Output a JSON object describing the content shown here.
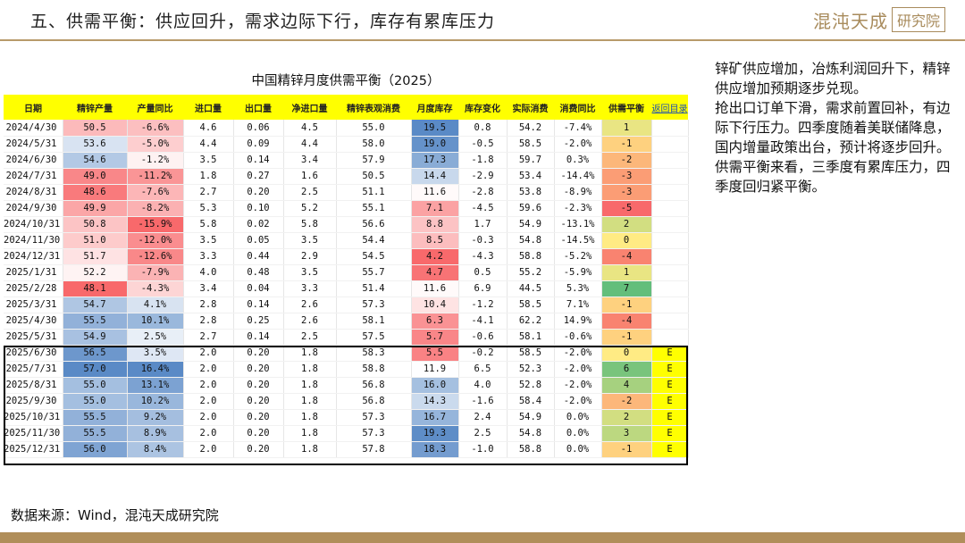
{
  "header": {
    "title": "五、供需平衡：供应回升，需求边际下行，库存有累库压力",
    "logo_main": "混沌天成",
    "logo_boxed": "研究院"
  },
  "table": {
    "title": "中国精锌月度供需平衡（2025）",
    "columns": [
      "日期",
      "精锌产量",
      "产量同比",
      "进口量",
      "出口量",
      "净进口量",
      "精锌表观消费",
      "月度库存",
      "库存变化",
      "实际消费",
      "消费同比",
      "供需平衡"
    ],
    "link_label": "返回目录",
    "rows": [
      [
        "2024/4/30",
        "50.5",
        "-6.6%",
        "4.6",
        "0.06",
        "4.5",
        "55.0",
        "19.5",
        "0.8",
        "54.2",
        "-7.4%",
        "1",
        ""
      ],
      [
        "2024/5/31",
        "53.6",
        "-5.0%",
        "4.4",
        "0.09",
        "4.4",
        "58.0",
        "19.0",
        "-0.5",
        "58.5",
        "-2.0%",
        "-1",
        ""
      ],
      [
        "2024/6/30",
        "54.6",
        "-1.2%",
        "3.5",
        "0.14",
        "3.4",
        "57.9",
        "17.3",
        "-1.8",
        "59.7",
        "0.3%",
        "-2",
        ""
      ],
      [
        "2024/7/31",
        "49.0",
        "-11.2%",
        "1.8",
        "0.27",
        "1.6",
        "50.5",
        "14.4",
        "-2.9",
        "53.4",
        "-14.4%",
        "-3",
        ""
      ],
      [
        "2024/8/31",
        "48.6",
        "-7.6%",
        "2.7",
        "0.20",
        "2.5",
        "51.1",
        "11.6",
        "-2.8",
        "53.8",
        "-8.9%",
        "-3",
        ""
      ],
      [
        "2024/9/30",
        "49.9",
        "-8.2%",
        "5.3",
        "0.10",
        "5.2",
        "55.1",
        "7.1",
        "-4.5",
        "59.6",
        "-2.3%",
        "-5",
        ""
      ],
      [
        "2024/10/31",
        "50.8",
        "-15.9%",
        "5.8",
        "0.02",
        "5.8",
        "56.6",
        "8.8",
        "1.7",
        "54.9",
        "-13.1%",
        "2",
        ""
      ],
      [
        "2024/11/30",
        "51.0",
        "-12.0%",
        "3.5",
        "0.05",
        "3.5",
        "54.4",
        "8.5",
        "-0.3",
        "54.8",
        "-14.5%",
        "0",
        ""
      ],
      [
        "2024/12/31",
        "51.7",
        "-12.6%",
        "3.3",
        "0.44",
        "2.9",
        "54.5",
        "4.2",
        "-4.3",
        "58.8",
        "-5.2%",
        "-4",
        ""
      ],
      [
        "2025/1/31",
        "52.2",
        "-7.9%",
        "4.0",
        "0.48",
        "3.5",
        "55.7",
        "4.7",
        "0.5",
        "55.2",
        "-5.9%",
        "1",
        ""
      ],
      [
        "2025/2/28",
        "48.1",
        "-4.3%",
        "3.4",
        "0.04",
        "3.3",
        "51.4",
        "11.6",
        "6.9",
        "44.5",
        "5.3%",
        "7",
        ""
      ],
      [
        "2025/3/31",
        "54.7",
        "4.1%",
        "2.8",
        "0.14",
        "2.6",
        "57.3",
        "10.4",
        "-1.2",
        "58.5",
        "7.1%",
        "-1",
        ""
      ],
      [
        "2025/4/30",
        "55.5",
        "10.1%",
        "2.8",
        "0.25",
        "2.6",
        "58.1",
        "6.3",
        "-4.1",
        "62.2",
        "14.9%",
        "-4",
        ""
      ],
      [
        "2025/5/31",
        "54.9",
        "2.5%",
        "2.7",
        "0.14",
        "2.5",
        "57.5",
        "5.7",
        "-0.6",
        "58.1",
        "-0.6%",
        "-1",
        ""
      ],
      [
        "2025/6/30",
        "56.5",
        "3.5%",
        "2.0",
        "0.20",
        "1.8",
        "58.3",
        "5.5",
        "-0.2",
        "58.5",
        "-2.0%",
        "0",
        "E"
      ],
      [
        "2025/7/31",
        "57.0",
        "16.4%",
        "2.0",
        "0.20",
        "1.8",
        "58.8",
        "11.9",
        "6.5",
        "52.3",
        "-2.0%",
        "6",
        "E"
      ],
      [
        "2025/8/31",
        "55.0",
        "13.1%",
        "2.0",
        "0.20",
        "1.8",
        "56.8",
        "16.0",
        "4.0",
        "52.8",
        "-2.0%",
        "4",
        "E"
      ],
      [
        "2025/9/30",
        "55.0",
        "10.2%",
        "2.0",
        "0.20",
        "1.8",
        "56.8",
        "14.3",
        "-1.6",
        "58.4",
        "-2.0%",
        "-2",
        "E"
      ],
      [
        "2025/10/31",
        "55.5",
        "9.2%",
        "2.0",
        "0.20",
        "1.8",
        "57.3",
        "16.7",
        "2.4",
        "54.9",
        "0.0%",
        "2",
        "E"
      ],
      [
        "2025/11/30",
        "55.5",
        "8.9%",
        "2.0",
        "0.20",
        "1.8",
        "57.3",
        "19.3",
        "2.5",
        "54.8",
        "0.0%",
        "3",
        "E"
      ],
      [
        "2025/12/31",
        "56.0",
        "8.4%",
        "2.0",
        "0.20",
        "1.8",
        "57.8",
        "18.3",
        "-1.0",
        "58.8",
        "0.0%",
        "-1",
        "E"
      ]
    ]
  },
  "notes": [
    "锌矿供应增加，冶炼利润回升下，精锌供应增加预期逐步兑现。",
    "抢出口订单下滑，需求前置回补，有边际下行压力。四季度随着美联储降息，国内增量政策出台，预计将逐步回升。",
    "供需平衡来看，三季度有累库压力，四季度回归紧平衡。"
  ],
  "footer": {
    "source": "数据来源：Wind，混沌天成研究院"
  },
  "colors": {
    "accent_gold": "#b08e5a",
    "header_yellow": "#ffff00",
    "scale_red": "#f8696b",
    "scale_blue": "#5a8ac6",
    "scale_green": "#63be7b"
  }
}
